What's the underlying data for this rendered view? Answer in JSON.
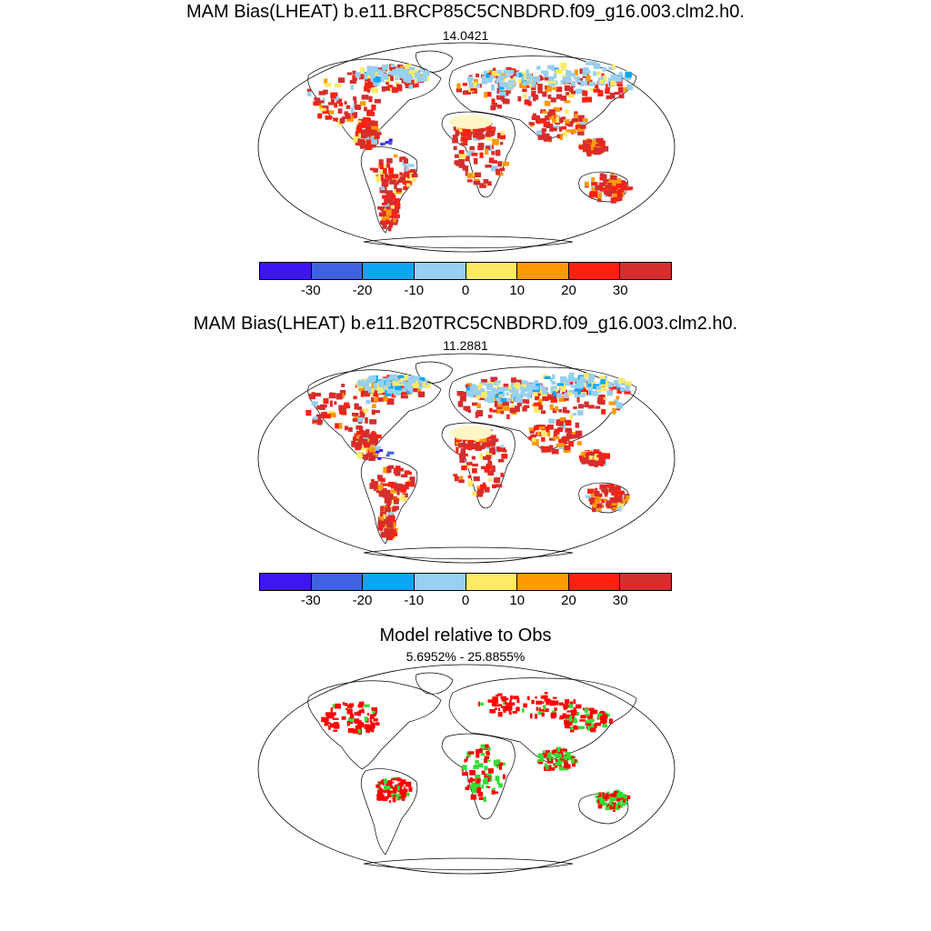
{
  "panels": [
    {
      "title": "MAM Bias(LHEAT) b.e11.BRCP85C5CNBDRD.f09_g16.003.clm2.h0.",
      "subtitle": "14.0421"
    },
    {
      "title": "MAM Bias(LHEAT) b.e11.B20TRC5CNBDRD.f09_g16.003.clm2.h0.",
      "subtitle": "11.2881"
    },
    {
      "title": "Model relative to Obs",
      "subtitle": "5.6952% - 25.8855%"
    }
  ],
  "colorbar": {
    "colors": [
      "#3f15f2",
      "#3f62e0",
      "#0aa6f5",
      "#97d0f0",
      "#ffea66",
      "#ff9a05",
      "#ff2010",
      "#d62d2d"
    ],
    "labels": [
      "-30",
      "-20",
      "-10",
      "0",
      "10",
      "20",
      "30"
    ]
  },
  "relative_colors": {
    "higher": "#ff0000",
    "lower": "#33dd33"
  }
}
